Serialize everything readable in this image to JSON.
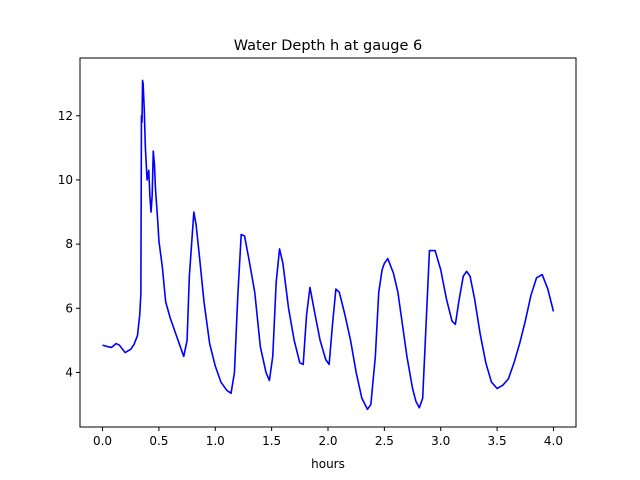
{
  "chart_data": {
    "type": "line",
    "title": "Water Depth h at gauge 6",
    "xlabel": "hours",
    "ylabel": "",
    "xlim": [
      -0.2,
      4.2
    ],
    "ylim": [
      2.3,
      13.8
    ],
    "xticks": [
      0.0,
      0.5,
      1.0,
      1.5,
      2.0,
      2.5,
      3.0,
      3.5,
      4.0
    ],
    "xtick_labels": [
      "0.0",
      "0.5",
      "1.0",
      "1.5",
      "2.0",
      "2.5",
      "3.0",
      "3.5",
      "4.0"
    ],
    "yticks": [
      4,
      6,
      8,
      10,
      12
    ],
    "ytick_labels": [
      "4",
      "6",
      "8",
      "10",
      "12"
    ],
    "grid": false,
    "legend": "none",
    "series": [
      {
        "color": "#0000ff",
        "x": [
          0.0,
          0.05,
          0.08,
          0.12,
          0.15,
          0.2,
          0.25,
          0.28,
          0.31,
          0.33,
          0.34,
          0.345,
          0.35,
          0.355,
          0.36,
          0.37,
          0.38,
          0.395,
          0.41,
          0.42,
          0.43,
          0.44,
          0.45,
          0.46,
          0.47,
          0.48,
          0.49,
          0.5,
          0.53,
          0.56,
          0.6,
          0.64,
          0.68,
          0.72,
          0.75,
          0.77,
          0.79,
          0.81,
          0.83,
          0.86,
          0.9,
          0.95,
          1.0,
          1.05,
          1.1,
          1.14,
          1.17,
          1.2,
          1.23,
          1.26,
          1.3,
          1.35,
          1.4,
          1.45,
          1.48,
          1.51,
          1.54,
          1.57,
          1.6,
          1.65,
          1.7,
          1.75,
          1.78,
          1.81,
          1.84,
          1.88,
          1.93,
          1.98,
          2.01,
          2.04,
          2.07,
          2.1,
          2.15,
          2.2,
          2.25,
          2.3,
          2.35,
          2.38,
          2.42,
          2.45,
          2.48,
          2.5,
          2.53,
          2.58,
          2.62,
          2.66,
          2.7,
          2.75,
          2.78,
          2.81,
          2.84,
          2.87,
          2.9,
          2.95,
          3.0,
          3.05,
          3.1,
          3.13,
          3.16,
          3.2,
          3.23,
          3.26,
          3.3,
          3.35,
          3.4,
          3.45,
          3.5,
          3.55,
          3.6,
          3.65,
          3.7,
          3.75,
          3.8,
          3.85,
          3.9,
          3.95,
          4.0
        ],
        "y": [
          4.85,
          4.8,
          4.78,
          4.9,
          4.85,
          4.62,
          4.72,
          4.88,
          5.15,
          5.8,
          6.45,
          12.0,
          11.8,
          13.1,
          13.0,
          12.2,
          11.0,
          10.0,
          10.3,
          9.5,
          9.0,
          9.5,
          10.9,
          10.5,
          9.7,
          9.2,
          8.7,
          8.1,
          7.3,
          6.2,
          5.7,
          5.3,
          4.9,
          4.5,
          5.0,
          7.0,
          8.0,
          9.0,
          8.6,
          7.6,
          6.2,
          4.9,
          4.2,
          3.7,
          3.45,
          3.35,
          4.0,
          6.4,
          8.3,
          8.25,
          7.5,
          6.5,
          4.8,
          4.0,
          3.75,
          4.5,
          6.8,
          7.85,
          7.4,
          6.0,
          5.0,
          4.3,
          4.25,
          5.8,
          6.65,
          5.9,
          5.0,
          4.4,
          4.25,
          5.5,
          6.6,
          6.5,
          5.8,
          5.0,
          4.0,
          3.2,
          2.85,
          3.0,
          4.5,
          6.5,
          7.2,
          7.4,
          7.55,
          7.1,
          6.5,
          5.5,
          4.5,
          3.5,
          3.1,
          2.9,
          3.2,
          5.5,
          7.8,
          7.8,
          7.2,
          6.3,
          5.6,
          5.5,
          6.2,
          7.0,
          7.15,
          7.0,
          6.3,
          5.2,
          4.3,
          3.7,
          3.5,
          3.6,
          3.8,
          4.3,
          4.9,
          5.6,
          6.4,
          6.95,
          7.05,
          6.6,
          5.9
        ]
      }
    ]
  }
}
